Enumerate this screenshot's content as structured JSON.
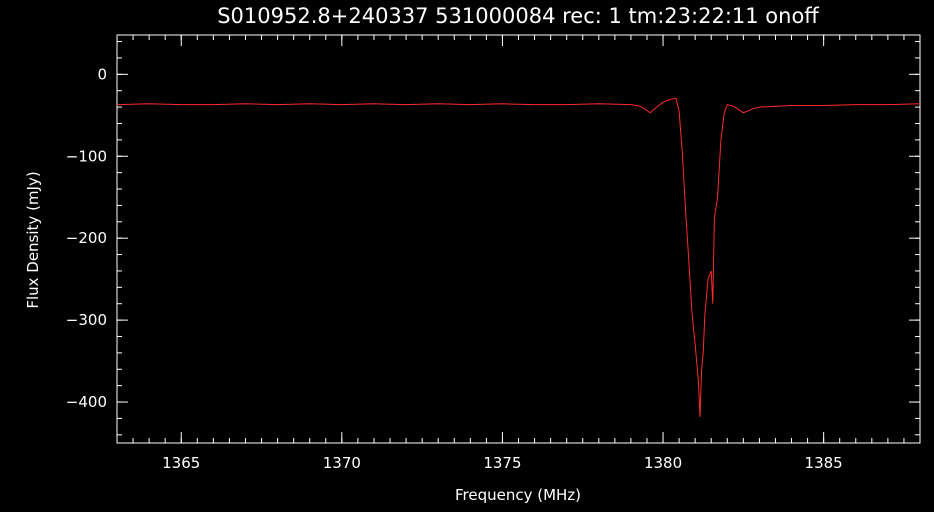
{
  "chart_data": {
    "type": "line",
    "title": "S010952.8+240337 531000084 rec:   1 tm:23:22:11 onoff",
    "xlabel": "Frequency (MHz)",
    "ylabel": "Flux Density (mJy)",
    "xlim": [
      1363.0,
      1388.0
    ],
    "ylim": [
      -450,
      48
    ],
    "xticks": [
      1365,
      1370,
      1375,
      1380,
      1385
    ],
    "xtick_labels": [
      "1365",
      "1370",
      "1375",
      "1380",
      "1385"
    ],
    "yticks": [
      0,
      -100,
      -200,
      -300,
      -400
    ],
    "ytick_labels": [
      "0",
      "−100",
      "−200",
      "−300",
      "−400"
    ],
    "x_minor_step": 0.5,
    "y_minor_step": 20,
    "grid": false,
    "colors": {
      "background": "#000000",
      "axes": "#ffffff",
      "series": "#ff2a2a"
    },
    "series": [
      {
        "x": [
          1363.0,
          1364.0,
          1365.0,
          1366.0,
          1367.0,
          1368.0,
          1369.0,
          1370.0,
          1371.0,
          1372.0,
          1373.0,
          1374.0,
          1375.0,
          1376.0,
          1377.0,
          1378.0,
          1379.0,
          1379.3,
          1379.6,
          1379.8,
          1380.0,
          1380.2,
          1380.4,
          1380.5,
          1380.6,
          1380.7,
          1380.8,
          1380.9,
          1381.0,
          1381.1,
          1381.15,
          1381.2,
          1381.25,
          1381.3,
          1381.4,
          1381.5,
          1381.55,
          1381.6,
          1381.7,
          1381.8,
          1381.9,
          1382.0,
          1382.2,
          1382.5,
          1382.8,
          1383.0,
          1384.0,
          1385.0,
          1386.0,
          1387.0,
          1388.0
        ],
        "y": [
          -37,
          -36,
          -37,
          -37,
          -36,
          -37,
          -36,
          -37,
          -36,
          -37,
          -36,
          -37,
          -36,
          -37,
          -37,
          -36,
          -37,
          -39,
          -47,
          -40,
          -34,
          -31,
          -29,
          -45,
          -95,
          -165,
          -225,
          -290,
          -330,
          -375,
          -418,
          -360,
          -340,
          -295,
          -250,
          -240,
          -280,
          -175,
          -150,
          -80,
          -48,
          -37,
          -39,
          -47,
          -42,
          -40,
          -38,
          -38,
          -37,
          -37,
          -36
        ]
      }
    ]
  }
}
